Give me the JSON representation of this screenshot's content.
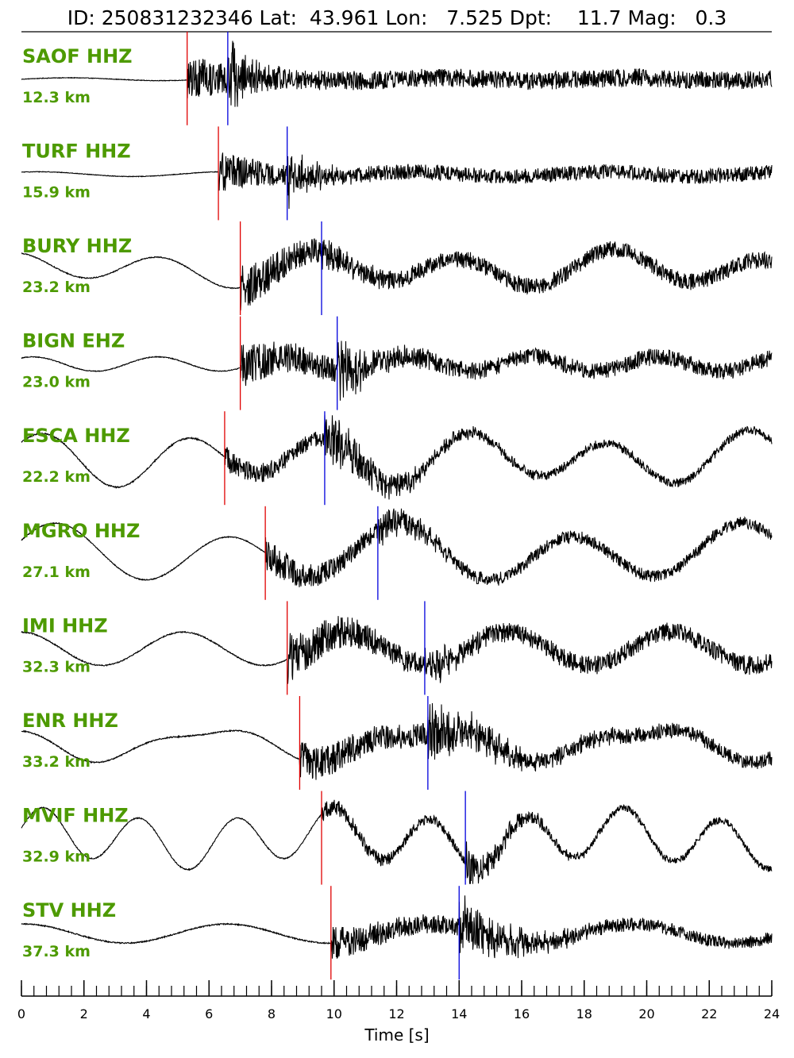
{
  "title": "ID: 250831232346 Lat:  43.961 Lon:   7.525 Dpt:    11.7 Mag:   0.3",
  "colors": {
    "label": "#4d9a00",
    "p_pick": "#e00000",
    "s_pick": "#0000dd",
    "trace": "#000000"
  },
  "chart_data": {
    "type": "line",
    "title": "ID: 250831232346 Lat:  43.961 Lon:   7.525 Dpt:    11.7 Mag:   0.3",
    "xlabel": "Time [s]",
    "ylabel": "",
    "xlim": [
      0,
      24
    ],
    "x_ticks": [
      "0",
      "2",
      "4",
      "6",
      "8",
      "10",
      "12",
      "14",
      "16",
      "18",
      "20",
      "22",
      "24"
    ],
    "minor_tick_step": 0.4,
    "grid": false,
    "traces": [
      {
        "station": "SAOF HHZ",
        "distance": "12.3 km",
        "p_pick": 5.3,
        "s_pick": 6.6,
        "noise": 0.05,
        "p_amp": 0.55,
        "s_amp": 0.65,
        "coda": 1.2,
        "wave": [
          [
            6.0,
            0.03,
            0.0
          ]
        ]
      },
      {
        "station": "TURF HHZ",
        "distance": "15.9 km",
        "p_pick": 6.3,
        "s_pick": 8.5,
        "noise": 0.05,
        "p_amp": 0.45,
        "s_amp": 0.55,
        "coda": 1.3,
        "wave": [
          [
            6.0,
            0.05,
            1.0
          ]
        ]
      },
      {
        "station": "BURY HHZ",
        "distance": "23.2 km",
        "p_pick": 7.0,
        "s_pick": 9.6,
        "noise": 0.08,
        "p_amp": 0.5,
        "s_amp": 0.2,
        "coda": 1.8,
        "wave": [
          [
            4.8,
            0.3,
            2.0
          ],
          [
            9.0,
            0.12,
            0.5
          ]
        ]
      },
      {
        "station": "BIGN EHZ",
        "distance": "23.0 km",
        "p_pick": 7.0,
        "s_pick": 10.1,
        "noise": 0.07,
        "p_amp": 0.5,
        "s_amp": 0.55,
        "coda": 2.0,
        "wave": [
          [
            4.0,
            0.15,
            1.0
          ]
        ]
      },
      {
        "station": "ESCA HHZ",
        "distance": "22.2 km",
        "p_pick": 6.5,
        "s_pick": 9.7,
        "noise": 0.12,
        "p_amp": 0.25,
        "s_amp": 0.55,
        "coda": 3.5,
        "wave": [
          [
            4.5,
            0.45,
            0.5
          ],
          [
            8.0,
            0.15,
            2.0
          ]
        ]
      },
      {
        "station": "MGRO HHZ",
        "distance": "27.1 km",
        "p_pick": 7.8,
        "s_pick": 11.4,
        "noise": 0.08,
        "p_amp": 0.35,
        "s_amp": 0.3,
        "coda": 2.5,
        "wave": [
          [
            5.5,
            0.5,
            0.3
          ],
          [
            11.0,
            0.15,
            1.2
          ]
        ]
      },
      {
        "station": "IMI HHZ",
        "distance": "32.3 km",
        "p_pick": 8.5,
        "s_pick": 12.9,
        "noise": 0.1,
        "p_amp": 0.55,
        "s_amp": 0.3,
        "coda": 2.0,
        "wave": [
          [
            5.2,
            0.35,
            1.6
          ]
        ]
      },
      {
        "station": "ENR HHZ",
        "distance": "33.2 km",
        "p_pick": 8.9,
        "s_pick": 13.0,
        "noise": 0.1,
        "p_amp": 0.4,
        "s_amp": 0.5,
        "coda": 4.0,
        "wave": [
          [
            7.0,
            0.3,
            2.4
          ],
          [
            3.5,
            0.1,
            0.7
          ]
        ]
      },
      {
        "station": "MVIF HHZ",
        "distance": "32.9 km",
        "p_pick": 9.6,
        "s_pick": 14.2,
        "noise": 0.1,
        "p_amp": 0.2,
        "s_amp": 0.45,
        "coda": 2.5,
        "wave": [
          [
            3.1,
            0.5,
            0.2
          ],
          [
            9.0,
            0.15,
            1.0
          ]
        ]
      },
      {
        "station": "STV HHZ",
        "distance": "37.3 km",
        "p_pick": 9.9,
        "s_pick": 14.0,
        "noise": 0.1,
        "p_amp": 0.35,
        "s_amp": 0.6,
        "coda": 3.0,
        "wave": [
          [
            6.5,
            0.2,
            1.5
          ]
        ]
      }
    ]
  }
}
